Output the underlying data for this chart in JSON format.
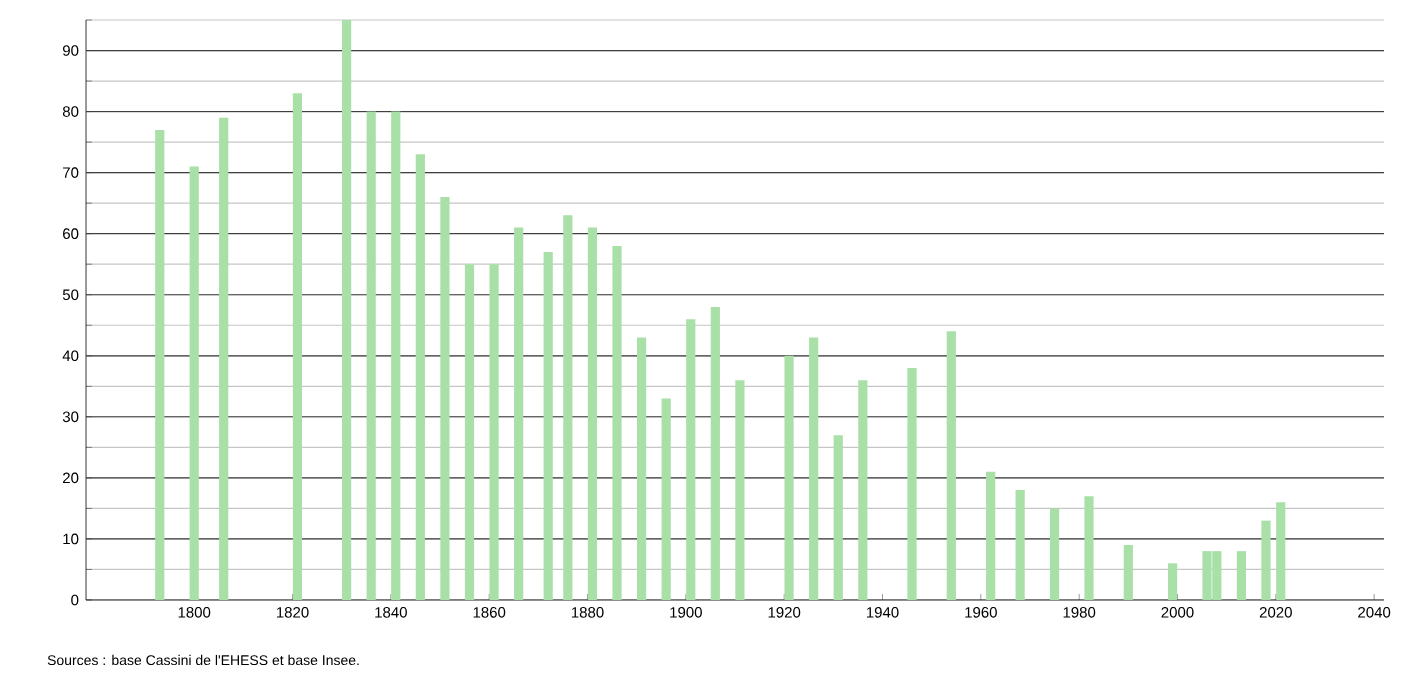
{
  "chart_data": {
    "type": "bar",
    "color": "#a8e0a8",
    "x": [
      1793,
      1800,
      1806,
      1821,
      1831,
      1836,
      1841,
      1846,
      1851,
      1856,
      1861,
      1866,
      1872,
      1876,
      1881,
      1886,
      1891,
      1896,
      1901,
      1906,
      1911,
      1921,
      1926,
      1931,
      1936,
      1946,
      1954,
      1962,
      1968,
      1975,
      1982,
      1990,
      1999,
      2006,
      2008,
      2013,
      2018,
      2021
    ],
    "values": [
      77,
      71,
      79,
      83,
      95,
      80,
      80,
      73,
      66,
      55,
      55,
      61,
      57,
      63,
      61,
      58,
      43,
      33,
      46,
      48,
      36,
      40,
      43,
      27,
      36,
      38,
      44,
      21,
      18,
      15,
      17,
      9,
      6,
      8,
      8,
      8,
      13,
      16
    ],
    "xlim": [
      1778,
      2042
    ],
    "ylim": [
      0,
      95
    ],
    "xticks": [
      1800,
      1820,
      1840,
      1860,
      1880,
      1900,
      1920,
      1940,
      1960,
      1980,
      2000,
      2020,
      2040
    ],
    "yticks": [
      0,
      {
        "value": 5,
        "label": null
      },
      10,
      {
        "value": 15,
        "label": null
      },
      20,
      {
        "value": 25,
        "label": null
      },
      30,
      {
        "value": 35,
        "label": null
      },
      40,
      {
        "value": 45,
        "label": null
      },
      50,
      {
        "value": 55,
        "label": null
      },
      60,
      {
        "value": 65,
        "label": null
      },
      70,
      {
        "value": 75,
        "label": null
      },
      80,
      {
        "value": 85,
        "label": null
      },
      90,
      {
        "value": 95,
        "label": null
      }
    ],
    "grid": "y",
    "annotations": [
      "Sources : base Cassini de l'EHESS et base Insee."
    ]
  }
}
